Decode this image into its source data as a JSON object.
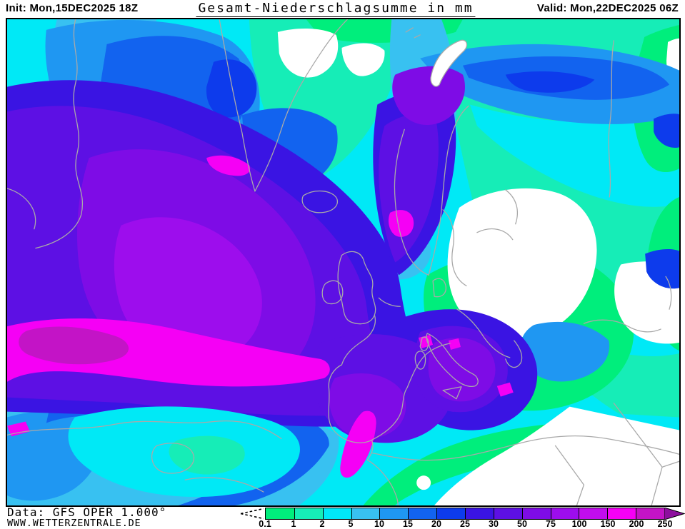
{
  "header": {
    "init": "Init: Mon,15DEC2025 18Z",
    "title": "Gesamt-Niederschlagsumme in mm",
    "valid": "Valid: Mon,22DEC2025 06Z"
  },
  "footer": {
    "data_source": "Data: GFS OPER 1.000°",
    "website": "WWW.WETTERZENTRALE.DE"
  },
  "legend": {
    "tick_labels": [
      "0.1",
      "1",
      "2",
      "5",
      "10",
      "15",
      "20",
      "25",
      "30",
      "50",
      "75",
      "100",
      "150",
      "200",
      "250"
    ],
    "colors": [
      "#00ee7c",
      "#16edb7",
      "#00e8f8",
      "#38c1f1",
      "#1f97f2",
      "#1263ef",
      "#0d3bec",
      "#3a14e3",
      "#5d10e4",
      "#7e0ce6",
      "#9d0ded",
      "#c20ded",
      "#f500f5",
      "#c314c6"
    ],
    "overflow_color": "#8d0f9e",
    "icons": {
      "below_threshold": "dashed-fan-icon"
    }
  },
  "map": {
    "background_color": "#00e9f6",
    "coastline_color": "#a9a9a9",
    "dry_area_color": "#ffffff"
  }
}
